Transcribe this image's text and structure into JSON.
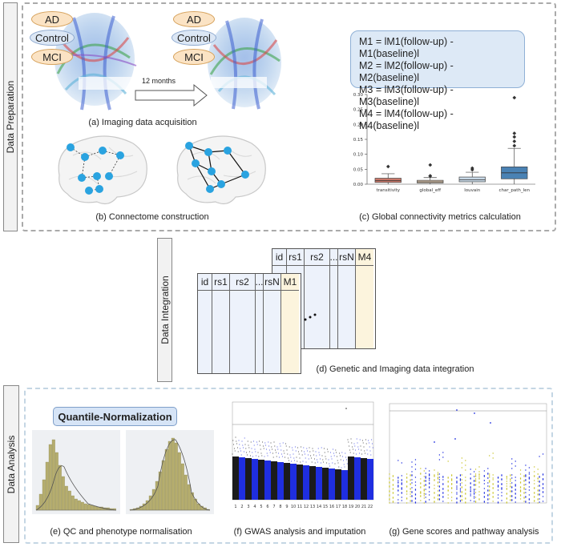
{
  "stages": {
    "preparation": "Data Preparation",
    "integration": "Data Integration",
    "analysis": "Data Analysis"
  },
  "groups": [
    "AD",
    "Control",
    "MCI"
  ],
  "arrow_label": "12 months",
  "captions": {
    "a": "(a) Imaging data acquisition",
    "b": "(b) Connectome construction",
    "c": "(c) Global connectivity metrics calculation",
    "d": "(d) Genetic and Imaging data integration",
    "e": "(e) QC and phenotype normalisation",
    "f": "(f) GWAS analysis and imputation",
    "g": "(g) Gene scores and pathway analysis"
  },
  "formulas": [
    "M1 = lM1(follow-up) - M1(baseline)l",
    "M2 = lM2(follow-up) - M2(baseline)l",
    "M3 = lM3(follow-up) - M3(baseline)l",
    "M4 = lM4(follow-up) - M4(baseline)l"
  ],
  "chart_data": {
    "type": "boxplot",
    "categories": [
      "transitivity",
      "global_eff",
      "louvain",
      "char_path_len"
    ],
    "yticks": [
      "0.00",
      "0.05",
      "0.10",
      "0.15",
      "0.20",
      "0.25",
      "0.30"
    ],
    "ylim": [
      0,
      0.3
    ],
    "series": [
      {
        "category": "transitivity",
        "whisker_low": 0.0,
        "q1": 0.006,
        "median": 0.012,
        "q3": 0.02,
        "whisker_high": 0.035,
        "outliers": [
          0.06
        ],
        "color": "#c9786a"
      },
      {
        "category": "global_eff",
        "whisker_low": 0.0,
        "q1": 0.004,
        "median": 0.008,
        "q3": 0.013,
        "whisker_high": 0.022,
        "outliers": [
          0.028,
          0.03,
          0.065
        ],
        "color": "#e0c9b0"
      },
      {
        "category": "louvain",
        "whisker_low": 0.0,
        "q1": 0.008,
        "median": 0.015,
        "q3": 0.024,
        "whisker_high": 0.04,
        "outliers": [
          0.05,
          0.055
        ],
        "color": "#c7d8e6"
      },
      {
        "category": "char_path_len",
        "whisker_low": 0.0,
        "q1": 0.018,
        "median": 0.038,
        "q3": 0.058,
        "whisker_high": 0.12,
        "outliers": [
          0.13,
          0.145,
          0.16,
          0.172,
          0.29
        ],
        "color": "#4a82b4"
      }
    ]
  },
  "tables": {
    "back": {
      "columns": [
        "id",
        "rs1",
        "rs2",
        "...",
        "rsN",
        "M4"
      ]
    },
    "front": {
      "columns": [
        "id",
        "rs1",
        "rs2",
        "...",
        "rsN",
        "M1"
      ]
    }
  },
  "quantile_label": "Quantile-Normalization",
  "manhattan_x_labels": [
    "1",
    "2",
    "3",
    "4",
    "5",
    "6",
    "7",
    "8",
    "9",
    "10",
    "11",
    "12",
    "13",
    "14",
    "15",
    "16",
    "17",
    "18",
    "19",
    "20",
    "21",
    "22"
  ]
}
